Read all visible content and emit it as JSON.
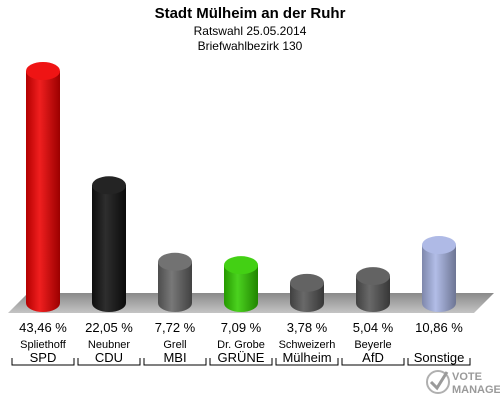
{
  "chart_data": {
    "type": "bar",
    "title": "Stadt Mülheim an der Ruhr",
    "subtitle": "Ratswahl 25.05.2014",
    "subtitle2": "Briefwahlbezirk 130",
    "categories": [
      "SPD",
      "CDU",
      "MBI",
      "GRÜNE",
      "Mülheim",
      "AfD",
      "Sonstige"
    ],
    "candidates": [
      "Spliethoff",
      "Neubner",
      "Grell",
      "Dr. Grobe",
      "Schweizerh",
      "Beyerle",
      ""
    ],
    "values": [
      43.46,
      22.05,
      7.72,
      7.09,
      3.78,
      5.04,
      10.86
    ],
    "value_labels": [
      "43,46 %",
      "22,05 %",
      "7,72 %",
      "7,09 %",
      "3,78 %",
      "5,04 %",
      "10,86 %"
    ],
    "colors": [
      "#ee0000",
      "#111111",
      "#666666",
      "#33cc00",
      "#555555",
      "#555555",
      "#a8b4e4"
    ],
    "ylim": [
      0,
      45
    ],
    "grid": false
  },
  "logo": {
    "line1": "VOTE",
    "line2": "MANAGER"
  }
}
